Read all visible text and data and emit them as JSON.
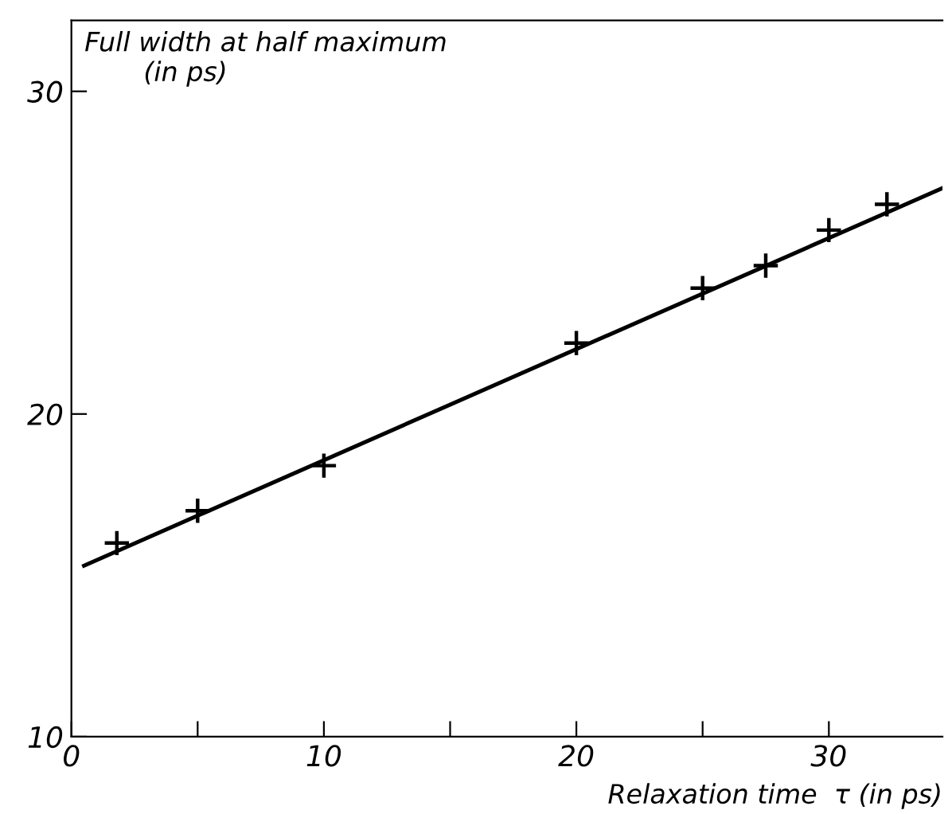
{
  "chart_data": {
    "type": "scatter",
    "xlabel": "Relaxation time  τ (in ps)",
    "ylabel": "Full width at half maximum\n       (in ps)",
    "xlim": [
      0,
      34.5
    ],
    "ylim": [
      10,
      32.2
    ],
    "xticks": [
      0,
      {
        "value": 5,
        "label": null
      },
      10,
      {
        "value": 15,
        "label": null
      },
      20,
      {
        "value": 25,
        "label": null
      },
      30
    ],
    "yticks": [
      10,
      20,
      30
    ],
    "grid": false,
    "legend": false,
    "series": [
      {
        "marker": "cross",
        "color": "#000000",
        "x": [
          1.8,
          5,
          10,
          20,
          25,
          27.5,
          30,
          32.3
        ],
        "values": [
          16.0,
          17.0,
          18.4,
          22.2,
          23.9,
          24.6,
          25.7,
          26.5
        ]
      },
      {
        "type": "line",
        "marker": "none",
        "line_style": "solid",
        "color": "#000000",
        "x": [
          0.5,
          34.5
        ],
        "values": [
          15.3,
          27.0
        ]
      }
    ]
  }
}
